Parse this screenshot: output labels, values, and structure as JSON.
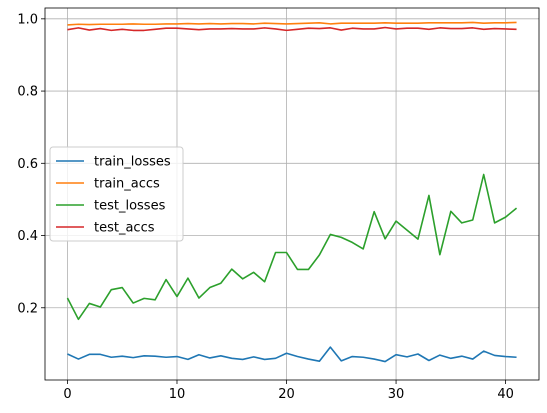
{
  "chart_data": {
    "type": "line",
    "title": "",
    "xlabel": "",
    "ylabel": "",
    "xlim": [
      -2.05,
      43.05
    ],
    "ylim": [
      0.0,
      1.03
    ],
    "xticks": [
      0,
      10,
      20,
      30,
      40
    ],
    "yticks": [
      0.2,
      0.4,
      0.6,
      0.8,
      1.0
    ],
    "xtick_labels": [
      "0",
      "10",
      "20",
      "30",
      "40"
    ],
    "ytick_labels": [
      "0.2",
      "0.4",
      "0.6",
      "0.8",
      "1.0"
    ],
    "grid": true,
    "legend_position": "center-left",
    "x": [
      0,
      1,
      2,
      3,
      4,
      5,
      6,
      7,
      8,
      9,
      10,
      11,
      12,
      13,
      14,
      15,
      16,
      17,
      18,
      19,
      20,
      21,
      22,
      23,
      24,
      25,
      26,
      27,
      28,
      29,
      30,
      31,
      32,
      33,
      34,
      35,
      36,
      37,
      38,
      39,
      40,
      41
    ],
    "series": [
      {
        "name": "train_losses",
        "color": "#1f77b4",
        "values": [
          0.072,
          0.058,
          0.071,
          0.071,
          0.063,
          0.066,
          0.062,
          0.067,
          0.066,
          0.063,
          0.065,
          0.057,
          0.07,
          0.061,
          0.067,
          0.06,
          0.057,
          0.064,
          0.057,
          0.06,
          0.074,
          0.065,
          0.058,
          0.052,
          0.091,
          0.053,
          0.065,
          0.063,
          0.058,
          0.051,
          0.07,
          0.064,
          0.072,
          0.054,
          0.069,
          0.06,
          0.066,
          0.058,
          0.08,
          0.068,
          0.065,
          0.063
        ]
      },
      {
        "name": "train_accs",
        "color": "#ff7f0e",
        "values": [
          0.983,
          0.985,
          0.984,
          0.985,
          0.985,
          0.985,
          0.986,
          0.985,
          0.985,
          0.986,
          0.986,
          0.987,
          0.986,
          0.987,
          0.986,
          0.987,
          0.987,
          0.986,
          0.988,
          0.987,
          0.986,
          0.987,
          0.988,
          0.989,
          0.986,
          0.988,
          0.988,
          0.988,
          0.988,
          0.989,
          0.988,
          0.988,
          0.988,
          0.989,
          0.989,
          0.989,
          0.989,
          0.99,
          0.988,
          0.989,
          0.989,
          0.99
        ]
      },
      {
        "name": "test_losses",
        "color": "#2ca02c",
        "values": [
          0.227,
          0.168,
          0.212,
          0.202,
          0.25,
          0.256,
          0.213,
          0.226,
          0.222,
          0.278,
          0.231,
          0.282,
          0.227,
          0.256,
          0.268,
          0.307,
          0.28,
          0.298,
          0.272,
          0.353,
          0.353,
          0.306,
          0.306,
          0.346,
          0.403,
          0.395,
          0.381,
          0.363,
          0.466,
          0.391,
          0.44,
          0.415,
          0.39,
          0.511,
          0.347,
          0.467,
          0.435,
          0.443,
          0.569,
          0.435,
          0.451,
          0.476
        ]
      },
      {
        "name": "test_accs",
        "color": "#d62728",
        "values": [
          0.97,
          0.975,
          0.969,
          0.973,
          0.968,
          0.971,
          0.968,
          0.968,
          0.971,
          0.974,
          0.974,
          0.972,
          0.97,
          0.972,
          0.972,
          0.973,
          0.972,
          0.972,
          0.975,
          0.972,
          0.968,
          0.971,
          0.974,
          0.973,
          0.975,
          0.969,
          0.974,
          0.972,
          0.972,
          0.976,
          0.972,
          0.974,
          0.974,
          0.971,
          0.975,
          0.973,
          0.973,
          0.975,
          0.971,
          0.973,
          0.972,
          0.971
        ]
      }
    ]
  }
}
